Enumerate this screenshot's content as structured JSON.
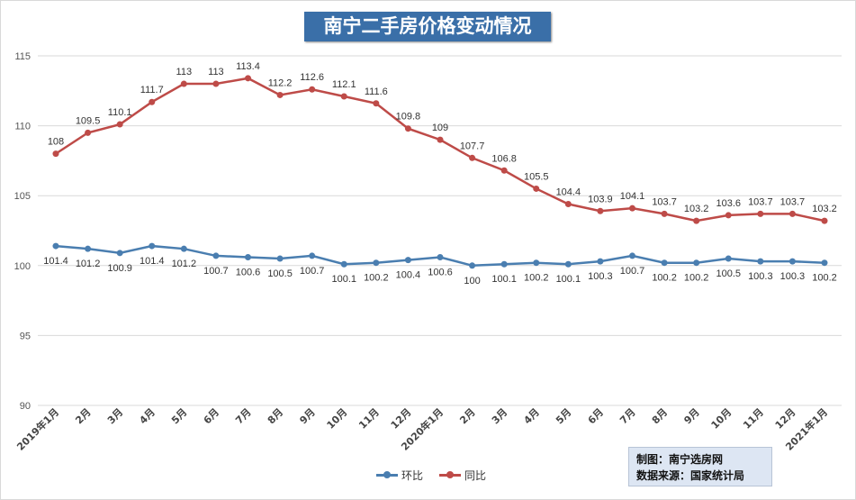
{
  "chart_data": {
    "type": "line",
    "title": "南宁二手房价格变动情况",
    "categories": [
      "2019年1月",
      "2月",
      "3月",
      "4月",
      "5月",
      "6月",
      "7月",
      "8月",
      "9月",
      "10月",
      "11月",
      "12月",
      "2020年1月",
      "2月",
      "3月",
      "4月",
      "5月",
      "6月",
      "7月",
      "8月",
      "9月",
      "10月",
      "11月",
      "12月",
      "2021年1月"
    ],
    "ylim": [
      90,
      115
    ],
    "yticks": [
      90,
      95,
      100,
      105,
      110,
      115
    ],
    "grid": true,
    "legend_placement": "bottom",
    "series": [
      {
        "name": "环比",
        "color": "#4a7eb0",
        "values": [
          101.4,
          101.2,
          100.9,
          101.4,
          101.2,
          100.7,
          100.6,
          100.5,
          100.7,
          100.1,
          100.2,
          100.4,
          100.6,
          100,
          100.1,
          100.2,
          100.1,
          100.3,
          100.7,
          100.2,
          100.2,
          100.5,
          100.3,
          100.3,
          100.2
        ]
      },
      {
        "name": "同比",
        "color": "#be4b48",
        "values": [
          108,
          109.5,
          110.1,
          111.7,
          113,
          113,
          113.4,
          112.2,
          112.6,
          112.1,
          111.6,
          109.8,
          109,
          107.7,
          106.8,
          105.5,
          104.4,
          103.9,
          104.1,
          103.7,
          103.2,
          103.6,
          103.7,
          103.7,
          103.2
        ]
      }
    ]
  },
  "source_box": {
    "line1": "制图：南宁选房网",
    "line2": "数据来源：国家统计局"
  }
}
